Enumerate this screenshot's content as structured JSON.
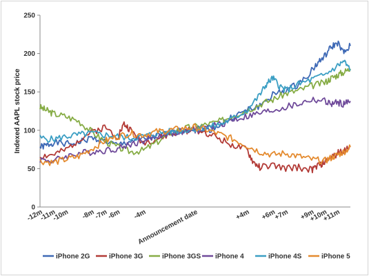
{
  "chart_data": {
    "type": "line",
    "title": "",
    "ylabel": "Indexed AAPL  stock price",
    "xlabel": "",
    "ylim": [
      0,
      250
    ],
    "yticks": [
      0,
      50,
      100,
      150,
      200,
      250
    ],
    "grid": false,
    "legend_position": "bottom",
    "x_ticks": [
      {
        "label": "-12m",
        "x": -12
      },
      {
        "label": "-11m",
        "x": -11
      },
      {
        "label": "-10m",
        "x": -10
      },
      {
        "label": "-8m",
        "x": -8
      },
      {
        "label": "-7m",
        "x": -7
      },
      {
        "label": "-6m",
        "x": -6
      },
      {
        "label": "-4m",
        "x": -4
      },
      {
        "label": "Announcement date",
        "x": 0
      },
      {
        "label": "+4m",
        "x": 4
      },
      {
        "label": "+6m",
        "x": 6
      },
      {
        "label": "+7m",
        "x": 7
      },
      {
        "label": "+9m",
        "x": 9
      },
      {
        "label": "+10m",
        "x": 10
      },
      {
        "label": "+11m",
        "x": 11
      }
    ],
    "xlim": [
      -12,
      12
    ],
    "series": [
      {
        "name": "iPhone 2G",
        "color": "#3d68b5",
        "points": [
          [
            -12,
            78
          ],
          [
            -11.5,
            80
          ],
          [
            -11,
            84
          ],
          [
            -10,
            82
          ],
          [
            -9,
            84
          ],
          [
            -8,
            90
          ],
          [
            -7,
            86
          ],
          [
            -6,
            80
          ],
          [
            -5,
            86
          ],
          [
            -4,
            88
          ],
          [
            -3,
            92
          ],
          [
            -2,
            96
          ],
          [
            -1,
            100
          ],
          [
            0,
            103
          ],
          [
            1,
            100
          ],
          [
            2,
            108
          ],
          [
            3,
            118
          ],
          [
            4,
            126
          ],
          [
            5,
            132
          ],
          [
            6,
            146
          ],
          [
            7,
            152
          ],
          [
            8,
            160
          ],
          [
            9,
            178
          ],
          [
            9.5,
            188
          ],
          [
            10,
            196
          ],
          [
            10.5,
            208
          ],
          [
            11,
            214
          ],
          [
            11.5,
            200
          ],
          [
            12,
            210
          ]
        ]
      },
      {
        "name": "iPhone 3G",
        "color": "#b23a36",
        "points": [
          [
            -12,
            66
          ],
          [
            -11,
            68
          ],
          [
            -10,
            74
          ],
          [
            -9,
            88
          ],
          [
            -8,
            98
          ],
          [
            -7,
            104
          ],
          [
            -6,
            92
          ],
          [
            -5.5,
            108
          ],
          [
            -5,
            100
          ],
          [
            -4,
            84
          ],
          [
            -3,
            88
          ],
          [
            -2,
            94
          ],
          [
            -1,
            98
          ],
          [
            0,
            101
          ],
          [
            1,
            96
          ],
          [
            2,
            88
          ],
          [
            3,
            80
          ],
          [
            4,
            74
          ],
          [
            4.5,
            58
          ],
          [
            5,
            52
          ],
          [
            6,
            54
          ],
          [
            7,
            50
          ],
          [
            8,
            52
          ],
          [
            9,
            48
          ],
          [
            9.5,
            54
          ],
          [
            10,
            58
          ],
          [
            10.5,
            64
          ],
          [
            11,
            70
          ],
          [
            11.5,
            74
          ],
          [
            12,
            80
          ]
        ]
      },
      {
        "name": "iPhone 3GS",
        "color": "#86ac45",
        "points": [
          [
            -12,
            130
          ],
          [
            -11.5,
            126
          ],
          [
            -11,
            122
          ],
          [
            -10,
            118
          ],
          [
            -9,
            112
          ],
          [
            -8,
            98
          ],
          [
            -7,
            86
          ],
          [
            -6,
            78
          ],
          [
            -5,
            72
          ],
          [
            -4,
            74
          ],
          [
            -3,
            84
          ],
          [
            -2,
            96
          ],
          [
            -1,
            102
          ],
          [
            0,
            105
          ],
          [
            1,
            108
          ],
          [
            2,
            112
          ],
          [
            3,
            120
          ],
          [
            4,
            126
          ],
          [
            5,
            134
          ],
          [
            6,
            140
          ],
          [
            7,
            148
          ],
          [
            8,
            152
          ],
          [
            9,
            158
          ],
          [
            10,
            162
          ],
          [
            10.5,
            168
          ],
          [
            11,
            172
          ],
          [
            11.5,
            176
          ],
          [
            12,
            180
          ]
        ]
      },
      {
        "name": "iPhone 4",
        "color": "#6f4a9a",
        "points": [
          [
            -12,
            62
          ],
          [
            -11,
            60
          ],
          [
            -10,
            66
          ],
          [
            -9,
            70
          ],
          [
            -8,
            72
          ],
          [
            -7,
            74
          ],
          [
            -6,
            76
          ],
          [
            -5,
            82
          ],
          [
            -4,
            86
          ],
          [
            -3,
            92
          ],
          [
            -2,
            96
          ],
          [
            -1,
            98
          ],
          [
            0,
            100
          ],
          [
            1,
            104
          ],
          [
            2,
            108
          ],
          [
            3,
            114
          ],
          [
            4,
            118
          ],
          [
            5,
            122
          ],
          [
            6,
            126
          ],
          [
            7,
            130
          ],
          [
            8,
            134
          ],
          [
            9,
            140
          ],
          [
            10,
            138
          ],
          [
            10.5,
            134
          ],
          [
            11,
            136
          ],
          [
            11.5,
            134
          ],
          [
            12,
            138
          ]
        ]
      },
      {
        "name": "iPhone 4S",
        "color": "#3a9ec3",
        "points": [
          [
            -12,
            90
          ],
          [
            -11,
            88
          ],
          [
            -10,
            92
          ],
          [
            -9,
            94
          ],
          [
            -8,
            96
          ],
          [
            -7,
            94
          ],
          [
            -6,
            92
          ],
          [
            -5,
            90
          ],
          [
            -4,
            92
          ],
          [
            -3,
            96
          ],
          [
            -2,
            98
          ],
          [
            -1,
            100
          ],
          [
            0,
            102
          ],
          [
            1,
            104
          ],
          [
            2,
            108
          ],
          [
            3,
            116
          ],
          [
            4,
            126
          ],
          [
            5,
            146
          ],
          [
            5.5,
            160
          ],
          [
            6,
            168
          ],
          [
            6.5,
            158
          ],
          [
            7,
            152
          ],
          [
            8,
            160
          ],
          [
            9,
            166
          ],
          [
            10,
            172
          ],
          [
            11,
            184
          ],
          [
            11.5,
            190
          ],
          [
            12,
            178
          ]
        ]
      },
      {
        "name": "iPhone 5",
        "color": "#e48a2e",
        "points": [
          [
            -12,
            60
          ],
          [
            -11,
            58
          ],
          [
            -10,
            62
          ],
          [
            -9,
            66
          ],
          [
            -8,
            76
          ],
          [
            -7,
            86
          ],
          [
            -6,
            92
          ],
          [
            -5,
            96
          ],
          [
            -4,
            94
          ],
          [
            -3,
            98
          ],
          [
            -2,
            100
          ],
          [
            -1,
            102
          ],
          [
            0,
            104
          ],
          [
            1,
            100
          ],
          [
            2,
            94
          ],
          [
            3,
            88
          ],
          [
            4,
            80
          ],
          [
            5,
            72
          ],
          [
            6,
            68
          ],
          [
            7,
            70
          ],
          [
            8,
            66
          ],
          [
            9,
            62
          ],
          [
            10,
            60
          ],
          [
            10.5,
            64
          ],
          [
            11,
            68
          ],
          [
            11.5,
            72
          ],
          [
            12,
            78
          ]
        ]
      }
    ]
  }
}
